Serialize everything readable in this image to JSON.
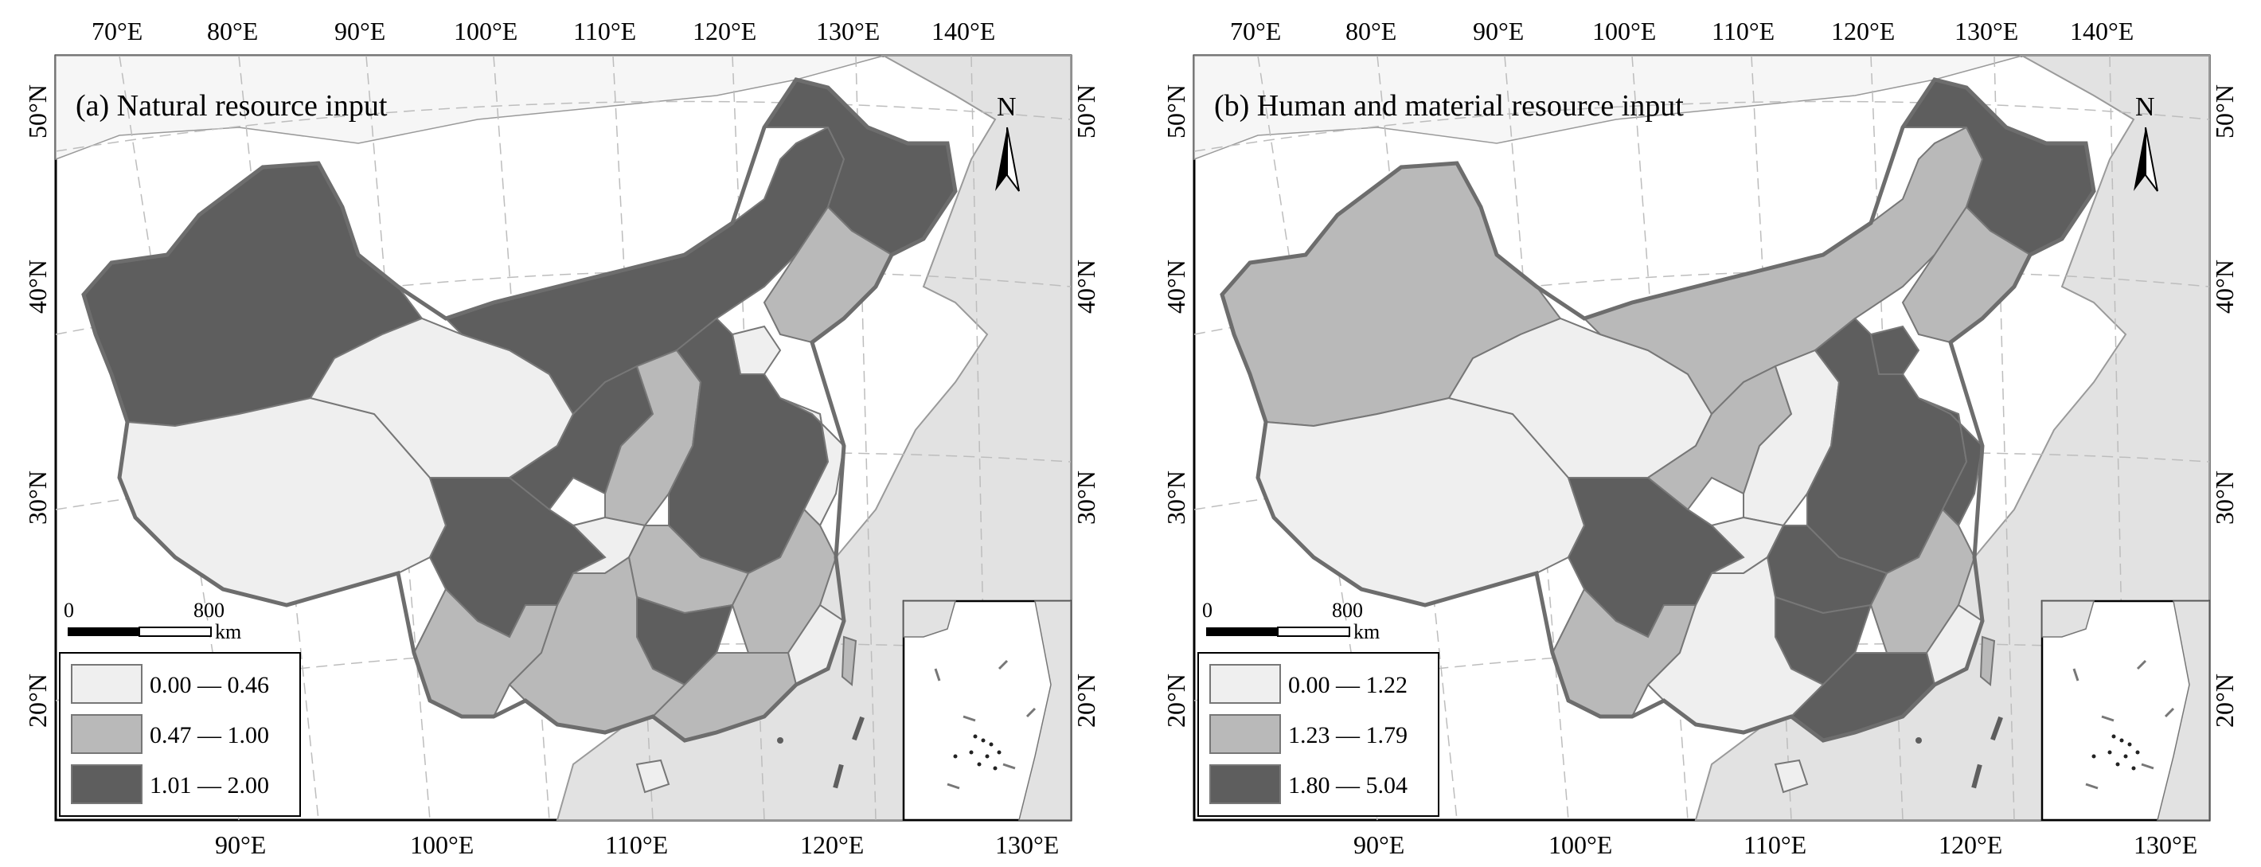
{
  "panels": [
    {
      "title": "(a) Natural resource input",
      "top_lon_labels": [
        "70°E",
        "80°E",
        "90°E",
        "100°E",
        "110°E",
        "120°E",
        "130°E",
        "140°E"
      ],
      "bottom_lon_labels": [
        "90°E",
        "100°E",
        "110°E",
        "120°E",
        "130°E"
      ],
      "left_lat_labels": [
        "50°N",
        "40°N",
        "30°N",
        "20°N"
      ],
      "right_lat_labels": [
        "50°N",
        "40°N",
        "30°N",
        "20°N"
      ],
      "north": "N",
      "scale": {
        "zero": "0",
        "max": "800",
        "unit": "km"
      },
      "legend": [
        {
          "label": "0.00 — 0.46",
          "color": "#efefef"
        },
        {
          "label": "0.47 — 1.00",
          "color": "#b9b9b9"
        },
        {
          "label": "1.01 — 2.00",
          "color": "#5e5e5e"
        }
      ]
    },
    {
      "title": "(b) Human and material resource input",
      "top_lon_labels": [
        "70°E",
        "80°E",
        "90°E",
        "100°E",
        "110°E",
        "120°E",
        "130°E",
        "140°E"
      ],
      "bottom_lon_labels": [
        "90°E",
        "100°E",
        "110°E",
        "120°E",
        "130°E"
      ],
      "left_lat_labels": [
        "50°N",
        "40°N",
        "30°N",
        "20°N"
      ],
      "right_lat_labels": [
        "50°N",
        "40°N",
        "30°N",
        "20°N"
      ],
      "north": "N",
      "scale": {
        "zero": "0",
        "max": "800",
        "unit": "km"
      },
      "legend": [
        {
          "label": "0.00 — 1.22",
          "color": "#efefef"
        },
        {
          "label": "1.23 — 1.79",
          "color": "#b9b9b9"
        },
        {
          "label": "1.80 — 5.04",
          "color": "#5e5e5e"
        }
      ]
    }
  ],
  "colors": {
    "ocean": "#ffffff",
    "neighbor_land": "#e2e2e2",
    "border": "#777777"
  }
}
